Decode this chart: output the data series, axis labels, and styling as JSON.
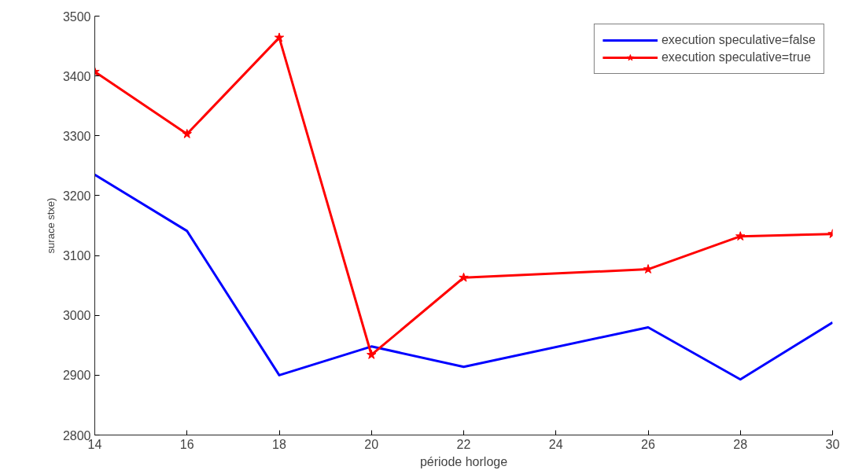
{
  "chart_data": {
    "type": "line",
    "xlabel": "période horloge",
    "ylabel": "surace stxe)",
    "xlim": [
      14,
      30
    ],
    "xticks": [
      14,
      16,
      18,
      20,
      22,
      24,
      26,
      28,
      30
    ],
    "ylim": [
      2800,
      3500
    ],
    "yticks": [
      2800,
      2900,
      3000,
      3100,
      3200,
      3300,
      3400,
      3500
    ],
    "grid": false,
    "legend": "top right",
    "series": [
      {
        "name": "execution speculative=false",
        "color": "#0000ff",
        "marker": "none",
        "x": [
          14,
          16,
          18,
          20,
          22,
          26,
          28,
          30
        ],
        "values": [
          3235,
          3141,
          2900,
          2948,
          2914,
          2980,
          2893,
          2988
        ]
      },
      {
        "name": "execution speculative=true",
        "color": "#ff0000",
        "marker": "star",
        "x": [
          14,
          16,
          18,
          20,
          22,
          26,
          28,
          30
        ],
        "values": [
          3407,
          3303,
          3464,
          2934,
          3063,
          3077,
          3132,
          3136
        ]
      }
    ]
  }
}
